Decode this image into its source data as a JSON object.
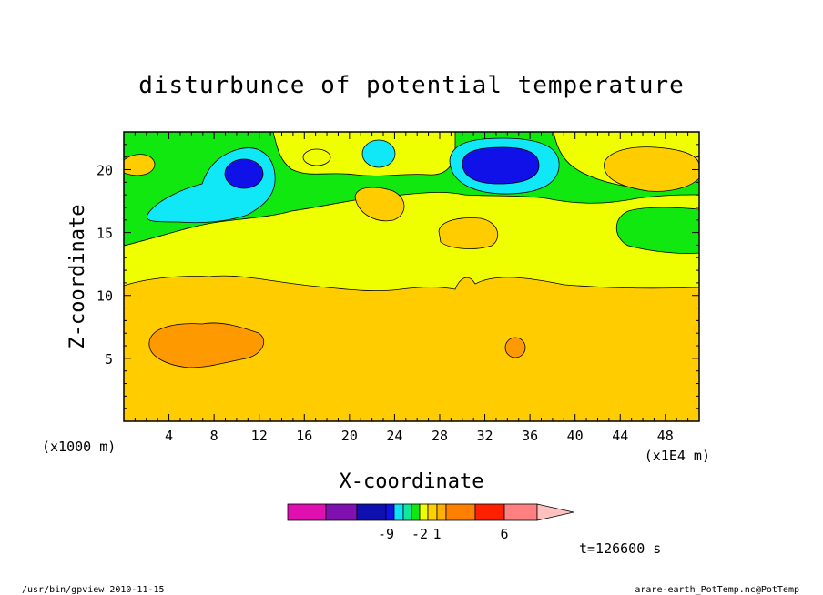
{
  "chart_data": {
    "type": "heatmap",
    "title": "disturbunce of potential temperature",
    "xlabel": "X-coordinate",
    "ylabel": "Z-coordinate",
    "x_unit_left": "(x1000 m)",
    "x_unit_right": "(x1E4 m)",
    "xlim": [
      0,
      51
    ],
    "ylim": [
      0,
      23
    ],
    "x_ticks": [
      4,
      8,
      12,
      16,
      20,
      24,
      28,
      32,
      36,
      40,
      44,
      48
    ],
    "y_ticks": [
      5,
      10,
      15,
      20
    ],
    "background_level": "3 to 5",
    "bands": [
      {
        "level": "3 to 5",
        "z_range": [
          0,
          11
        ]
      },
      {
        "level": "1 to 2",
        "z_range": [
          11,
          14
        ]
      },
      {
        "level": "-1 to 0",
        "z_range": [
          14,
          23
        ]
      }
    ],
    "features": [
      {
        "level": "-2 to -1",
        "x": 11,
        "z": 18
      },
      {
        "level": "-3 to -2",
        "x": 10.5,
        "z": 19.5
      },
      {
        "level": "-2 to -1",
        "x": 22.7,
        "z": 21.2
      },
      {
        "level": "-2 to -1",
        "x": 33,
        "z": 20
      },
      {
        "level": "-3 to -2",
        "x": 33.5,
        "z": 20.4
      },
      {
        "level": "1 to 2",
        "x": 19.5,
        "z": 21
      },
      {
        "level": "1 to 2",
        "x": 21.5,
        "z": 18.5
      },
      {
        "level": "1 to 2",
        "x": 30,
        "z": 14
      },
      {
        "level": "2 to 3",
        "x": 1.5,
        "z": 20.5
      },
      {
        "level": "2 to 3",
        "x": 46,
        "z": 19.5
      },
      {
        "level": "-1 to 0",
        "x": 47,
        "z": 15.5
      },
      {
        "level": "5 to 6",
        "x": 7.5,
        "z": 6
      },
      {
        "level": "5 to 6",
        "x": 34.7,
        "z": 6
      }
    ],
    "colorbar": {
      "colors": [
        "#e010b0",
        "#8010b0",
        "#1010b0",
        "#1010e8",
        "#10e0f8",
        "#10e8a0",
        "#10e810",
        "#f0ff00",
        "#ffd000",
        "#ffb000",
        "#ff8000",
        "#ff2000",
        "#ff8080",
        "#ffc0c0"
      ],
      "tick_labels": [
        {
          "label": "-9",
          "index": 2
        },
        {
          "label": "-2",
          "index": 6
        },
        {
          "label": "1",
          "index": 8
        },
        {
          "label": "6",
          "index": 11
        }
      ]
    },
    "time_label": "t=126600 s"
  },
  "footer": {
    "left": "/usr/bin/gpview   2010-11-15",
    "right": "arare-earth_PotTemp.nc@PotTemp"
  }
}
